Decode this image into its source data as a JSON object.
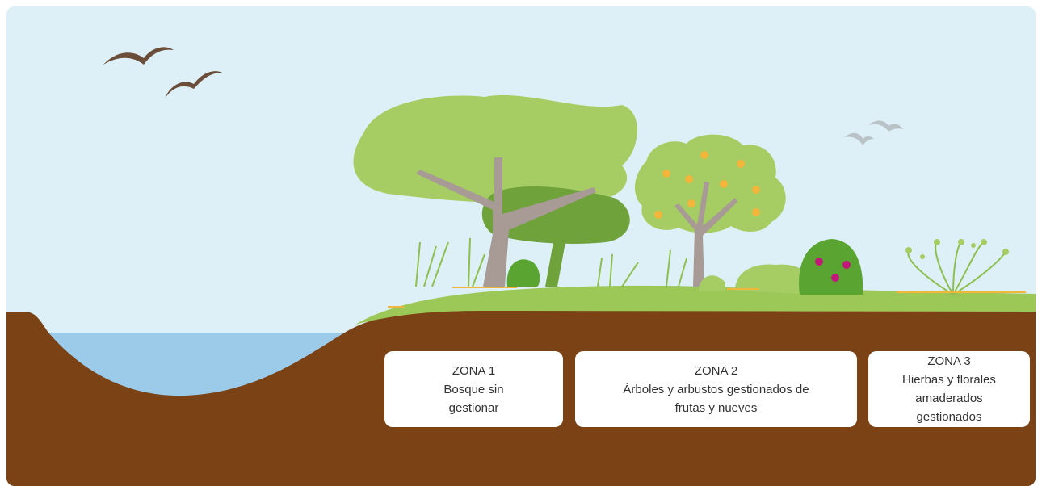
{
  "zones": [
    {
      "label": "ZONA 1",
      "text": "Bosque sin gestionar"
    },
    {
      "label": "ZONA 2",
      "text": "Árboles y arbustos gestionados de frutas y nueves"
    },
    {
      "label": "ZONA 3",
      "text": "Hierbas y florales amaderados gestionados"
    }
  ]
}
